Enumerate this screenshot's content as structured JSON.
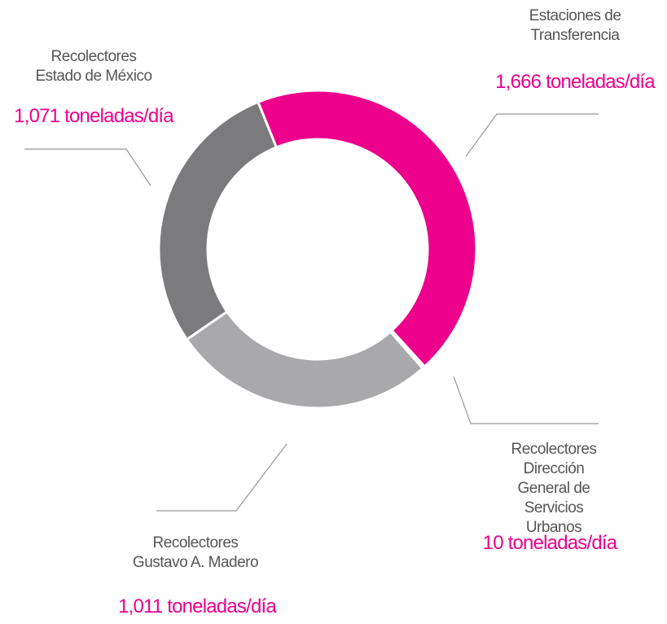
{
  "chart_data": {
    "type": "donut",
    "categories": [
      "Estaciones de\nTransferencia",
      "Recolectores\nDirección General de\nServicios Urbanos",
      "Recolectores\nGustavo A. Madero",
      "Recolectores\nEstado de México"
    ],
    "values": [
      1666,
      10,
      1011,
      1071
    ],
    "value_labels": [
      "1,666 toneladas/día",
      "10 toneladas/día",
      "1,011 toneladas/día",
      "1,071 toneladas/día"
    ],
    "colors": [
      "#ec008c",
      "#d4d4d4",
      "#a9a9ab",
      "#7b7b7d"
    ],
    "label_color": "#ec008c"
  }
}
